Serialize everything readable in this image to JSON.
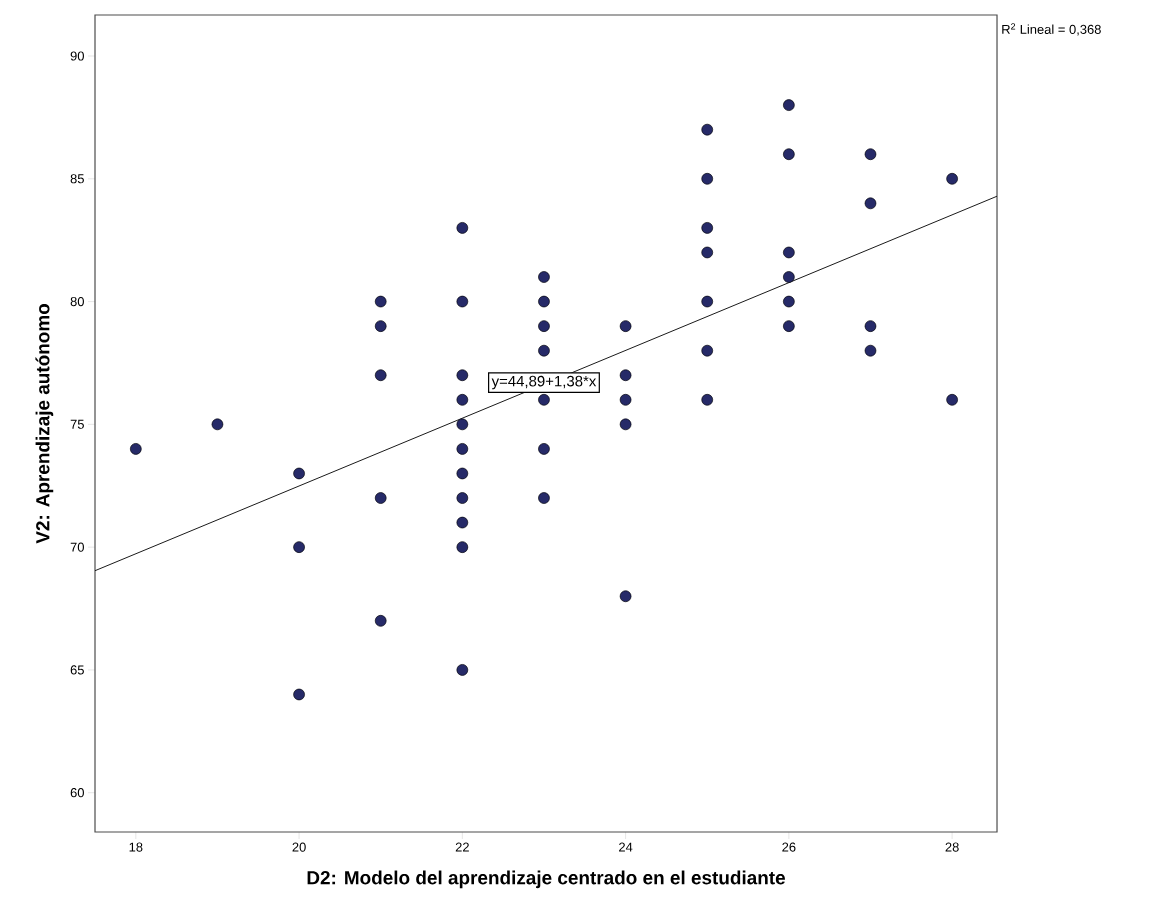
{
  "chart_data": {
    "type": "scatter",
    "xlabel": "D2: Modelo del aprendizaje centrado en el estudiante",
    "ylabel": "V2: Aprendizaje autónomo",
    "xlim": [
      17.5,
      28.55
    ],
    "ylim": [
      58.4,
      91.67
    ],
    "xticks": [
      18,
      20,
      22,
      24,
      26,
      28
    ],
    "yticks": [
      60,
      65,
      70,
      75,
      80,
      85,
      90
    ],
    "series": [
      {
        "color": "#262a68",
        "x": [
          18,
          19,
          20,
          20,
          20,
          21,
          21,
          21,
          21,
          21,
          22,
          22,
          22,
          22,
          22,
          22,
          22,
          22,
          22,
          22,
          22,
          23,
          23,
          23,
          23,
          23,
          23,
          23,
          24,
          24,
          24,
          24,
          24,
          25,
          25,
          25,
          25,
          25,
          25,
          25,
          26,
          26,
          26,
          26,
          26,
          26,
          27,
          27,
          27,
          27,
          28,
          28
        ],
        "values": [
          74,
          75,
          73,
          70,
          64,
          80,
          79,
          77,
          72,
          67,
          83,
          80,
          77,
          76,
          75,
          74,
          73,
          72,
          71,
          70,
          65,
          81,
          80,
          79,
          78,
          76,
          74,
          72,
          79,
          77,
          76,
          75,
          68,
          87,
          85,
          83,
          82,
          80,
          78,
          76,
          88,
          86,
          82,
          81,
          80,
          79,
          86,
          84,
          79,
          78,
          85,
          76
        ]
      },
      {
        "type": "line",
        "color": "#1a1a1a",
        "line_style": "solid",
        "x": [
          17.5,
          28.55
        ],
        "values": [
          69.04,
          84.29
        ]
      }
    ],
    "annotations": [
      {
        "text": "y=44,89+1,38*x",
        "x": 23,
        "y": 76.7
      },
      "R$^{2}$ Lineal = 0,368"
    ]
  }
}
